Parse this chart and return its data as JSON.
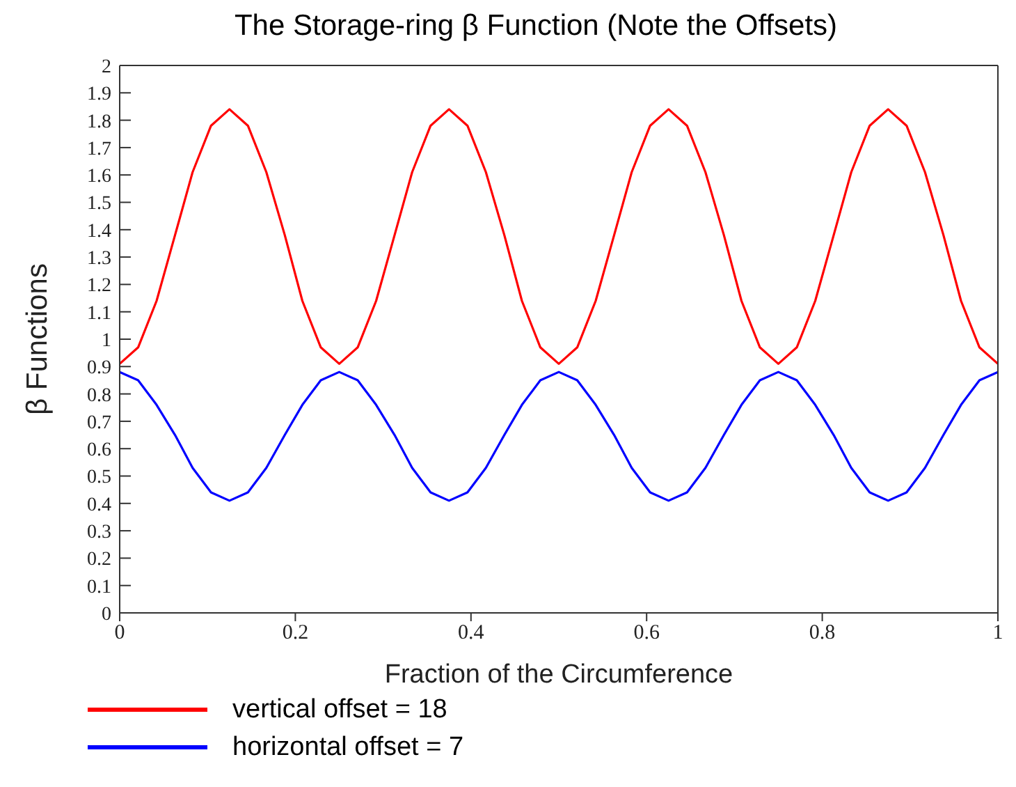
{
  "chart_data": {
    "type": "line",
    "title": "The Storage-ring β Function (Note the Offsets)",
    "xlabel": "Fraction of the Circumference",
    "ylabel": "β Functions",
    "x": [
      0,
      0.021,
      0.042,
      0.063,
      0.083,
      0.104,
      0.125,
      0.146,
      0.167,
      0.188,
      0.208,
      0.229,
      0.25,
      0.271,
      0.292,
      0.313,
      0.333,
      0.354,
      0.375,
      0.396,
      0.417,
      0.438,
      0.458,
      0.479,
      0.5,
      0.521,
      0.542,
      0.563,
      0.583,
      0.604,
      0.625,
      0.646,
      0.667,
      0.688,
      0.708,
      0.729,
      0.75,
      0.771,
      0.792,
      0.813,
      0.833,
      0.854,
      0.875,
      0.896,
      0.917,
      0.938,
      0.958,
      0.979,
      1
    ],
    "series": [
      {
        "name": "vertical offset = 18",
        "color": "#ff0000",
        "values": [
          0.91,
          0.97,
          1.14,
          1.38,
          1.61,
          1.78,
          1.84,
          1.78,
          1.61,
          1.38,
          1.14,
          0.97,
          0.91,
          0.97,
          1.14,
          1.38,
          1.61,
          1.78,
          1.84,
          1.78,
          1.61,
          1.38,
          1.14,
          0.97,
          0.91,
          0.97,
          1.14,
          1.38,
          1.61,
          1.78,
          1.84,
          1.78,
          1.61,
          1.38,
          1.14,
          0.97,
          0.91,
          0.97,
          1.14,
          1.38,
          1.61,
          1.78,
          1.84,
          1.78,
          1.61,
          1.38,
          1.14,
          0.97,
          0.91
        ]
      },
      {
        "name": "horizontal offset = 7",
        "color": "#0000ff",
        "values": [
          0.88,
          0.85,
          0.76,
          0.65,
          0.53,
          0.44,
          0.41,
          0.44,
          0.53,
          0.65,
          0.76,
          0.85,
          0.88,
          0.85,
          0.76,
          0.65,
          0.53,
          0.44,
          0.41,
          0.44,
          0.53,
          0.65,
          0.76,
          0.85,
          0.88,
          0.85,
          0.76,
          0.65,
          0.53,
          0.44,
          0.41,
          0.44,
          0.53,
          0.65,
          0.76,
          0.85,
          0.88,
          0.85,
          0.76,
          0.65,
          0.53,
          0.44,
          0.41,
          0.44,
          0.53,
          0.65,
          0.76,
          0.85,
          0.88
        ]
      }
    ],
    "xlim": [
      0,
      1
    ],
    "xticks": [
      0,
      0.2,
      0.4,
      0.6,
      0.8,
      1
    ],
    "ylim": [
      0,
      2
    ],
    "yticks": [
      0,
      0.1,
      0.2,
      0.3,
      0.4,
      0.5,
      0.6,
      0.7,
      0.8,
      0.9,
      1,
      1.1,
      1.2,
      1.3,
      1.4,
      1.5,
      1.6,
      1.7,
      1.8,
      1.9,
      2
    ],
    "grid": false,
    "legend": "bottom",
    "marker": "none",
    "line_style": "solid"
  }
}
